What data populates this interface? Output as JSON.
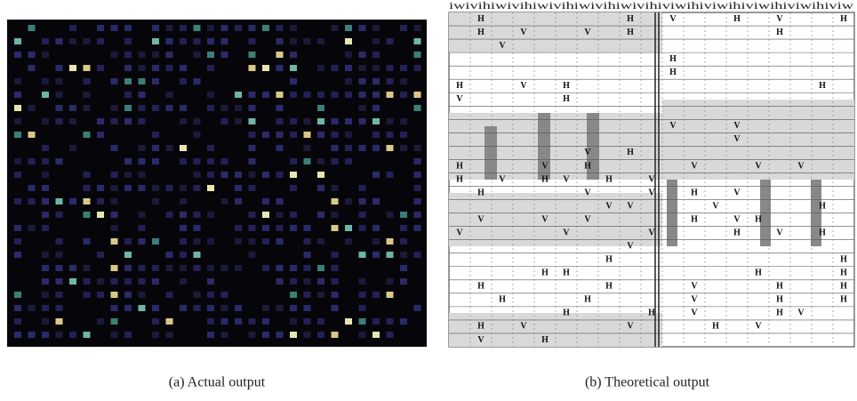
{
  "figure": {
    "panel_b_header": "iwivihiwivihiwivihiwivihiwivihiviwihiviwihiviwihiviwihiviw",
    "panel_b_rows": [
      [
        null,
        "H",
        null,
        null,
        null,
        null,
        null,
        null,
        "H",
        null,
        "V",
        null,
        null,
        "H",
        null,
        "V",
        null,
        null,
        "H"
      ],
      [
        null,
        "H",
        null,
        "V",
        null,
        null,
        "V",
        null,
        "H",
        null,
        null,
        null,
        null,
        null,
        null,
        "H",
        null,
        null,
        null
      ],
      [
        null,
        null,
        "V",
        null,
        null,
        null,
        null,
        null,
        null,
        null,
        null,
        null,
        null,
        null,
        null,
        null,
        null,
        null,
        null
      ],
      [
        null,
        null,
        null,
        null,
        null,
        null,
        null,
        null,
        null,
        null,
        "H",
        null,
        null,
        null,
        null,
        null,
        null,
        null,
        null
      ],
      [
        null,
        null,
        null,
        null,
        null,
        null,
        null,
        null,
        null,
        null,
        "H",
        null,
        null,
        null,
        null,
        null,
        null,
        null,
        null
      ],
      [
        "H",
        null,
        null,
        "V",
        null,
        "H",
        null,
        null,
        null,
        null,
        null,
        null,
        null,
        null,
        null,
        null,
        null,
        "H",
        null
      ],
      [
        "V",
        null,
        null,
        null,
        null,
        "H",
        null,
        null,
        null,
        null,
        null,
        null,
        null,
        null,
        null,
        null,
        null,
        null,
        null
      ],
      [
        null,
        null,
        null,
        null,
        null,
        null,
        null,
        null,
        null,
        null,
        null,
        null,
        null,
        null,
        null,
        null,
        null,
        null,
        null
      ],
      [
        null,
        null,
        null,
        null,
        null,
        null,
        null,
        null,
        null,
        null,
        "V",
        null,
        null,
        "V",
        null,
        null,
        null,
        null,
        null
      ],
      [
        null,
        null,
        null,
        null,
        null,
        null,
        null,
        null,
        null,
        null,
        null,
        null,
        null,
        "V",
        null,
        null,
        null,
        null,
        null
      ],
      [
        null,
        null,
        null,
        null,
        null,
        null,
        "V",
        null,
        "H",
        null,
        null,
        null,
        null,
        null,
        null,
        null,
        null,
        null,
        null
      ],
      [
        "H",
        null,
        null,
        null,
        "V",
        null,
        "H",
        null,
        null,
        null,
        null,
        "V",
        null,
        null,
        "V",
        null,
        "V",
        null,
        null
      ],
      [
        "H",
        null,
        "V",
        null,
        "H",
        "V",
        null,
        "H",
        null,
        "V",
        null,
        null,
        null,
        null,
        null,
        null,
        null,
        null,
        null
      ],
      [
        null,
        "H",
        null,
        null,
        null,
        null,
        "V",
        null,
        null,
        "V",
        null,
        "H",
        null,
        "V",
        null,
        null,
        null,
        null,
        null
      ],
      [
        null,
        null,
        null,
        null,
        null,
        null,
        null,
        "V",
        "V",
        null,
        null,
        null,
        "V",
        null,
        null,
        null,
        null,
        "H",
        null
      ],
      [
        null,
        "V",
        null,
        null,
        "V",
        null,
        "V",
        null,
        null,
        null,
        null,
        "H",
        null,
        "V",
        "H",
        null,
        null,
        null,
        null
      ],
      [
        "V",
        null,
        null,
        null,
        null,
        "V",
        null,
        null,
        null,
        "V",
        null,
        null,
        null,
        "H",
        null,
        "V",
        null,
        "H",
        null
      ],
      [
        null,
        null,
        null,
        null,
        null,
        null,
        null,
        null,
        "V",
        null,
        null,
        null,
        null,
        null,
        null,
        null,
        null,
        null,
        null
      ],
      [
        null,
        null,
        null,
        null,
        null,
        null,
        null,
        "H",
        null,
        null,
        null,
        null,
        null,
        null,
        null,
        null,
        null,
        null,
        "H"
      ],
      [
        null,
        null,
        null,
        null,
        "H",
        "H",
        null,
        null,
        null,
        null,
        null,
        null,
        null,
        null,
        "H",
        null,
        null,
        null,
        "H"
      ],
      [
        null,
        "H",
        null,
        null,
        null,
        null,
        null,
        "H",
        null,
        null,
        null,
        "V",
        null,
        null,
        null,
        "H",
        null,
        null,
        "H"
      ],
      [
        null,
        null,
        "H",
        null,
        null,
        null,
        "H",
        null,
        null,
        null,
        null,
        "V",
        null,
        null,
        null,
        "H",
        null,
        null,
        "H"
      ],
      [
        null,
        null,
        null,
        null,
        null,
        "H",
        null,
        null,
        null,
        "H",
        null,
        "V",
        null,
        null,
        null,
        "H",
        "V",
        null,
        null
      ],
      [
        null,
        "H",
        null,
        "V",
        null,
        null,
        null,
        null,
        "V",
        null,
        null,
        null,
        "H",
        null,
        "V",
        null,
        null,
        null,
        null
      ],
      [
        null,
        "V",
        null,
        null,
        "H",
        null,
        null,
        null,
        null,
        null,
        null,
        null,
        null,
        null,
        null,
        null,
        null,
        null,
        null
      ]
    ],
    "caption_a": "(a) Actual output",
    "caption_b": "(b) Theoretical output"
  }
}
